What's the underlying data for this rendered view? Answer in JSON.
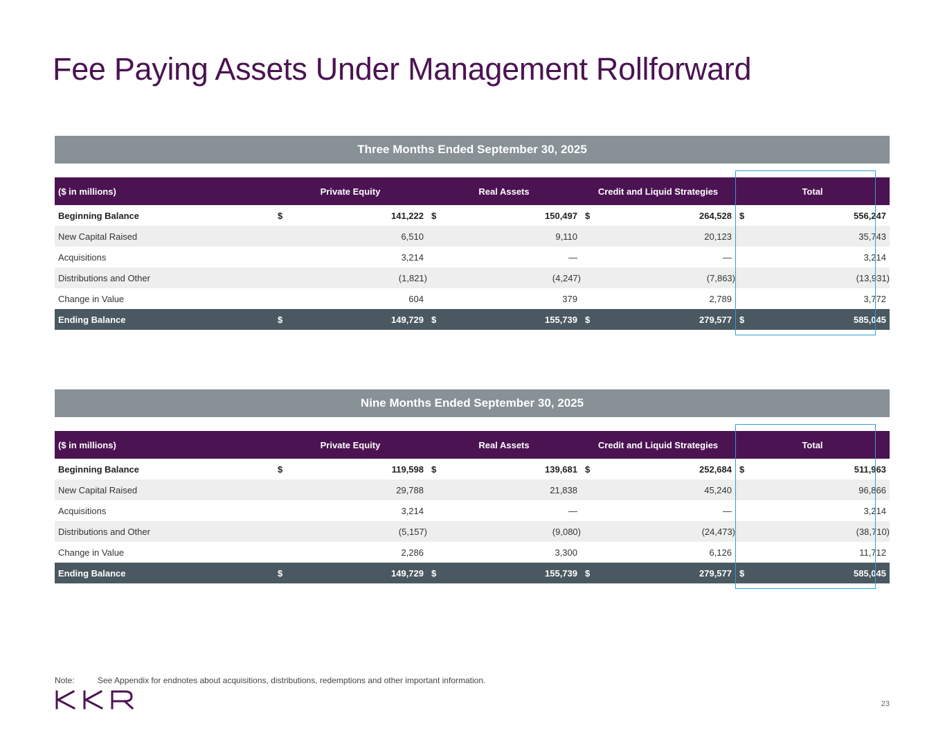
{
  "title": "Fee Paying Assets Under Management Rollforward",
  "colors": {
    "title": "#4b1352",
    "header_purple": "#4b1352",
    "section_gray": "#879196",
    "ending_row": "#4a5861",
    "highlight": "#2b9fd2"
  },
  "columns": {
    "label": "($ in millions)",
    "private_equity": "Private Equity",
    "real_assets": "Real Assets",
    "credit": "Credit and Liquid Strategies",
    "total": "Total"
  },
  "currency_symbol": "$",
  "tables": [
    {
      "heading": "Three Months Ended September 30, 2025",
      "rows": [
        {
          "label": "Beginning Balance",
          "pe": "141,222",
          "ra": "150,497",
          "cls": "264,528",
          "total": "556,247"
        },
        {
          "label": "New Capital Raised",
          "pe": "6,510",
          "ra": "9,110",
          "cls": "20,123",
          "total": "35,743"
        },
        {
          "label": "Acquisitions",
          "pe": "3,214",
          "ra": "—",
          "cls": "—",
          "total": "3,214"
        },
        {
          "label": "Distributions and Other",
          "pe": "(1,821)",
          "ra": "(4,247)",
          "cls": "(7,863)",
          "total": "(13,931)"
        },
        {
          "label": "Change in Value",
          "pe": "604",
          "ra": "379",
          "cls": "2,789",
          "total": "3,772"
        },
        {
          "label": "Ending Balance",
          "pe": "149,729",
          "ra": "155,739",
          "cls": "279,577",
          "total": "585,045"
        }
      ]
    },
    {
      "heading": "Nine Months Ended September 30, 2025",
      "rows": [
        {
          "label": "Beginning Balance",
          "pe": "119,598",
          "ra": "139,681",
          "cls": "252,684",
          "total": "511,963"
        },
        {
          "label": "New Capital Raised",
          "pe": "29,788",
          "ra": "21,838",
          "cls": "45,240",
          "total": "96,866"
        },
        {
          "label": "Acquisitions",
          "pe": "3,214",
          "ra": "—",
          "cls": "—",
          "total": "3,214"
        },
        {
          "label": "Distributions and Other",
          "pe": "(5,157)",
          "ra": "(9,080)",
          "cls": "(24,473)",
          "total": "(38,710)"
        },
        {
          "label": "Change in Value",
          "pe": "2,286",
          "ra": "3,300",
          "cls": "6,126",
          "total": "11,712"
        },
        {
          "label": "Ending Balance",
          "pe": "149,729",
          "ra": "155,739",
          "cls": "279,577",
          "total": "585,045"
        }
      ]
    }
  ],
  "note": {
    "label": "Note:",
    "text": "See Appendix for endnotes about acquisitions, distributions, redemptions and other important information."
  },
  "logo_text": "KKR",
  "page_number": "23"
}
